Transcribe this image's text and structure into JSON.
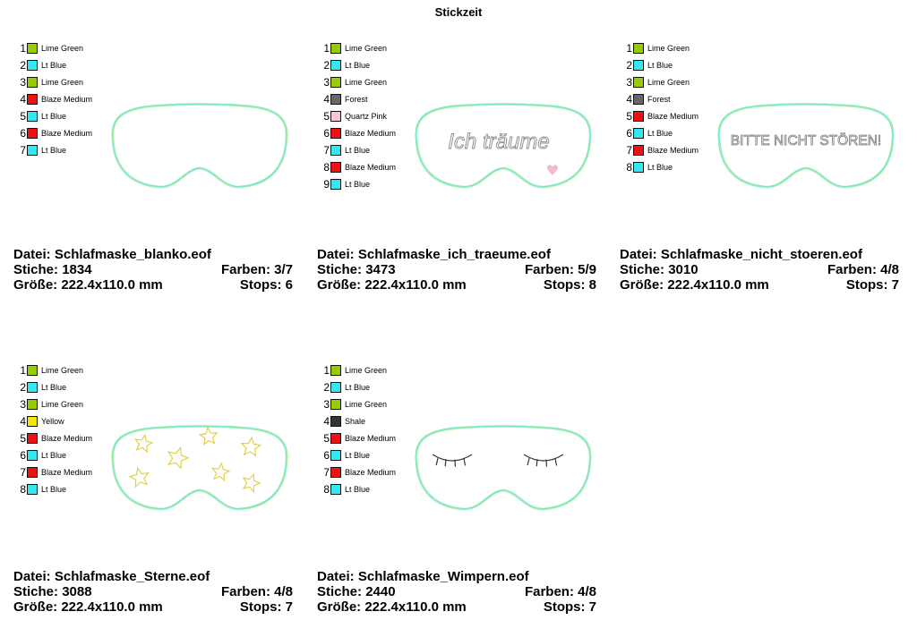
{
  "page": {
    "title": "Stickzeit"
  },
  "labels": {
    "file": "Datei:",
    "stitches": "Stiche:",
    "colors": "Farben:",
    "size": "Größe:",
    "stops": "Stops:"
  },
  "cards": [
    {
      "file": "Schlafmaske_blanko.eof",
      "stitches": "1834",
      "colors": "3/7",
      "size": "222.4x110.0 mm",
      "stops": "6",
      "colorlist": [
        {
          "num": "1",
          "name": "Lime Green",
          "hex": "#99cc00"
        },
        {
          "num": "2",
          "name": "Lt Blue",
          "hex": "#33e6f0"
        },
        {
          "num": "3",
          "name": "Lime Green",
          "hex": "#99cc00"
        },
        {
          "num": "4",
          "name": "Blaze Medium",
          "hex": "#ee1111"
        },
        {
          "num": "5",
          "name": "Lt Blue",
          "hex": "#33e6f0"
        },
        {
          "num": "6",
          "name": "Blaze Medium",
          "hex": "#ee1111"
        },
        {
          "num": "7",
          "name": "Lt Blue",
          "hex": "#33e6f0"
        }
      ],
      "design": "blank"
    },
    {
      "file": "Schlafmaske_ich_traeume.eof",
      "stitches": "3473",
      "colors": "5/9",
      "size": "222.4x110.0 mm",
      "stops": "8",
      "colorlist": [
        {
          "num": "1",
          "name": "Lime Green",
          "hex": "#99cc00"
        },
        {
          "num": "2",
          "name": "Lt Blue",
          "hex": "#33e6f0"
        },
        {
          "num": "3",
          "name": "Lime Green",
          "hex": "#99cc00"
        },
        {
          "num": "4",
          "name": "Forest",
          "hex": "#666666"
        },
        {
          "num": "5",
          "name": "Quartz Pink",
          "hex": "#f7c6d2"
        },
        {
          "num": "6",
          "name": "Blaze Medium",
          "hex": "#ee1111"
        },
        {
          "num": "7",
          "name": "Lt Blue",
          "hex": "#33e6f0"
        },
        {
          "num": "8",
          "name": "Blaze Medium",
          "hex": "#ee1111"
        },
        {
          "num": "9",
          "name": "Lt Blue",
          "hex": "#33e6f0"
        }
      ],
      "design": "text",
      "mask_text": "Ich träume"
    },
    {
      "file": "Schlafmaske_nicht_stoeren.eof",
      "stitches": "3010",
      "colors": "4/8",
      "size": "222.4x110.0 mm",
      "stops": "7",
      "colorlist": [
        {
          "num": "1",
          "name": "Lime Green",
          "hex": "#99cc00"
        },
        {
          "num": "2",
          "name": "Lt Blue",
          "hex": "#33e6f0"
        },
        {
          "num": "3",
          "name": "Lime Green",
          "hex": "#99cc00"
        },
        {
          "num": "4",
          "name": "Forest",
          "hex": "#666666"
        },
        {
          "num": "5",
          "name": "Blaze Medium",
          "hex": "#ee1111"
        },
        {
          "num": "6",
          "name": "Lt Blue",
          "hex": "#33e6f0"
        },
        {
          "num": "7",
          "name": "Blaze Medium",
          "hex": "#ee1111"
        },
        {
          "num": "8",
          "name": "Lt Blue",
          "hex": "#33e6f0"
        }
      ],
      "design": "text",
      "mask_text": "BITTE NICHT STÖREN!"
    },
    {
      "file": "Schlafmaske_Sterne.eof",
      "stitches": "3088",
      "colors": "4/8",
      "size": "222.4x110.0 mm",
      "stops": "7",
      "colorlist": [
        {
          "num": "1",
          "name": "Lime Green",
          "hex": "#99cc00"
        },
        {
          "num": "2",
          "name": "Lt Blue",
          "hex": "#33e6f0"
        },
        {
          "num": "3",
          "name": "Lime Green",
          "hex": "#99cc00"
        },
        {
          "num": "4",
          "name": "Yellow",
          "hex": "#f5e60a"
        },
        {
          "num": "5",
          "name": "Blaze Medium",
          "hex": "#ee1111"
        },
        {
          "num": "6",
          "name": "Lt Blue",
          "hex": "#33e6f0"
        },
        {
          "num": "7",
          "name": "Blaze Medium",
          "hex": "#ee1111"
        },
        {
          "num": "8",
          "name": "Lt Blue",
          "hex": "#33e6f0"
        }
      ],
      "design": "stars"
    },
    {
      "file": "Schlafmaske_Wimpern.eof",
      "stitches": "2440",
      "colors": "4/8",
      "size": "222.4x110.0 mm",
      "stops": "7",
      "colorlist": [
        {
          "num": "1",
          "name": "Lime Green",
          "hex": "#99cc00"
        },
        {
          "num": "2",
          "name": "Lt Blue",
          "hex": "#33e6f0"
        },
        {
          "num": "3",
          "name": "Lime Green",
          "hex": "#99cc00"
        },
        {
          "num": "4",
          "name": "Shale",
          "hex": "#333333"
        },
        {
          "num": "5",
          "name": "Blaze Medium",
          "hex": "#ee1111"
        },
        {
          "num": "6",
          "name": "Lt Blue",
          "hex": "#33e6f0"
        },
        {
          "num": "7",
          "name": "Blaze Medium",
          "hex": "#ee1111"
        },
        {
          "num": "8",
          "name": "Lt Blue",
          "hex": "#33e6f0"
        }
      ],
      "design": "lashes"
    }
  ]
}
